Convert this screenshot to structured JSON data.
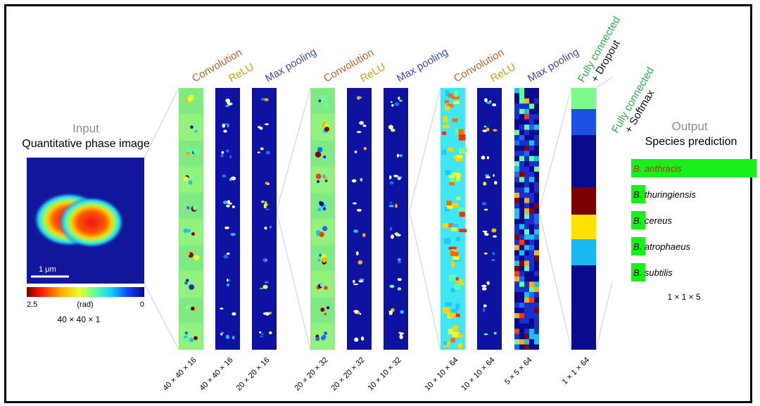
{
  "input": {
    "heading": "Input",
    "subheading": "Quantitative phase image",
    "scale_bar_label": "1 μm",
    "colorbar_max": "2.5",
    "colorbar_unit": "(rad)",
    "colorbar_min": "0",
    "dims": "40 × 40 × 1"
  },
  "layer_colors": {
    "convolution": "#c8622a",
    "relu": "#c9a21a",
    "max_pooling": "#3b4fa3",
    "fully_connected": "#2db04a",
    "dropout_softmax": "#111111"
  },
  "layers": [
    {
      "name": "Convolution",
      "kind": "convolution",
      "dims": "40 × 40 × 16",
      "style": "conv-pale"
    },
    {
      "name": "ReLU",
      "kind": "relu",
      "dims": "40 × 40 × 16",
      "style": "dark"
    },
    {
      "name": "Max pooling",
      "kind": "max_pooling",
      "dims": "20 × 20 × 16",
      "style": "dark"
    },
    {
      "name": "Convolution",
      "kind": "convolution",
      "dims": "20 × 20 × 32",
      "style": "conv-pale"
    },
    {
      "name": "ReLU",
      "kind": "relu",
      "dims": "20 × 20 × 32",
      "style": "dark"
    },
    {
      "name": "Max pooling",
      "kind": "max_pooling",
      "dims": "10 × 10 × 32",
      "style": "dark"
    },
    {
      "name": "Convolution",
      "kind": "convolution",
      "dims": "10 × 10 × 64",
      "style": "conv-bright"
    },
    {
      "name": "ReLU",
      "kind": "relu",
      "dims": "10 × 10 × 64",
      "style": "dark"
    },
    {
      "name": "Max pooling",
      "kind": "max_pooling",
      "dims": "5 × 5 × 64",
      "style": "pixel"
    }
  ],
  "fc1": {
    "label": "Fully connected",
    "suffix": "+ Dropout",
    "dims": "1 × 1 × 64",
    "segment_colors": [
      "#7dfa8c",
      "#1b4fe6",
      "#0a0a8c",
      "#7a0000",
      "#ffe100",
      "#1ab8f0",
      "#0a0a8c"
    ]
  },
  "fc2": {
    "label": "Fully connected",
    "suffix": "+ Softmax"
  },
  "output": {
    "heading": "Output",
    "subheading": "Species prediction",
    "dims": "1 × 1 × 5",
    "bar_color": "#19f019",
    "predictions": [
      {
        "species": "B. anthracis",
        "value": 1.0,
        "highlight": true
      },
      {
        "species": "B. thuringiensis",
        "value": 0.06,
        "highlight": false
      },
      {
        "species": "B. cereus",
        "value": 0.04,
        "highlight": false
      },
      {
        "species": "B. atrophaeus",
        "value": 0.04,
        "highlight": false
      },
      {
        "species": "B. subtilis",
        "value": 0.04,
        "highlight": false
      }
    ]
  }
}
